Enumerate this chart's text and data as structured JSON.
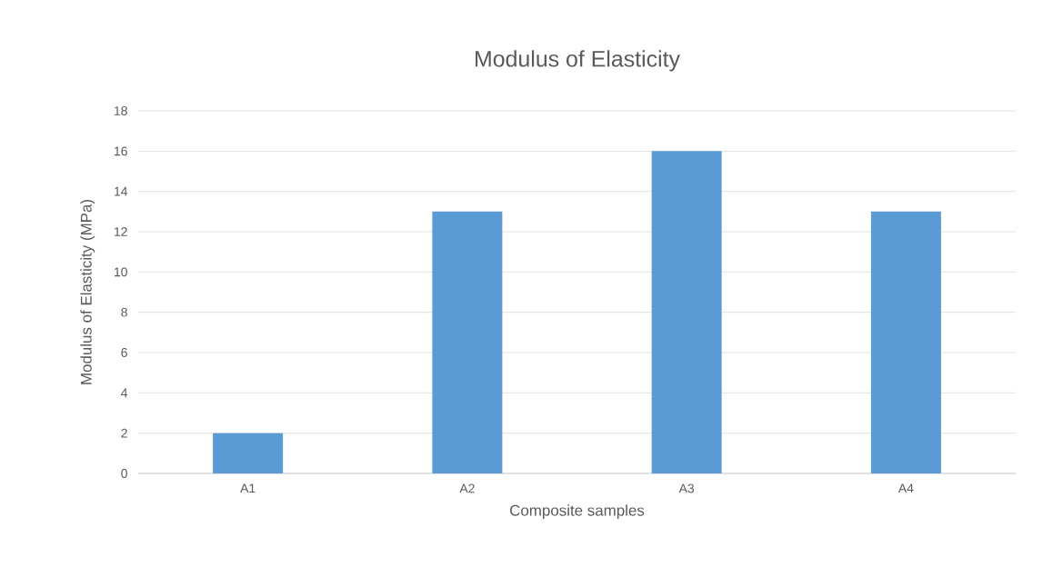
{
  "chart_data": {
    "type": "bar",
    "title": "Modulus of Elasticity",
    "xlabel": "Composite samples",
    "ylabel": "Modulus of Elasticity (MPa)",
    "categories": [
      "A1",
      "A2",
      "A3",
      "A4"
    ],
    "values": [
      2,
      13,
      16,
      13
    ],
    "color": "#5b9bd5",
    "ylim": [
      0,
      18
    ],
    "yticks": [
      0,
      2,
      4,
      6,
      8,
      10,
      12,
      14,
      16,
      18
    ],
    "grid": "y"
  }
}
